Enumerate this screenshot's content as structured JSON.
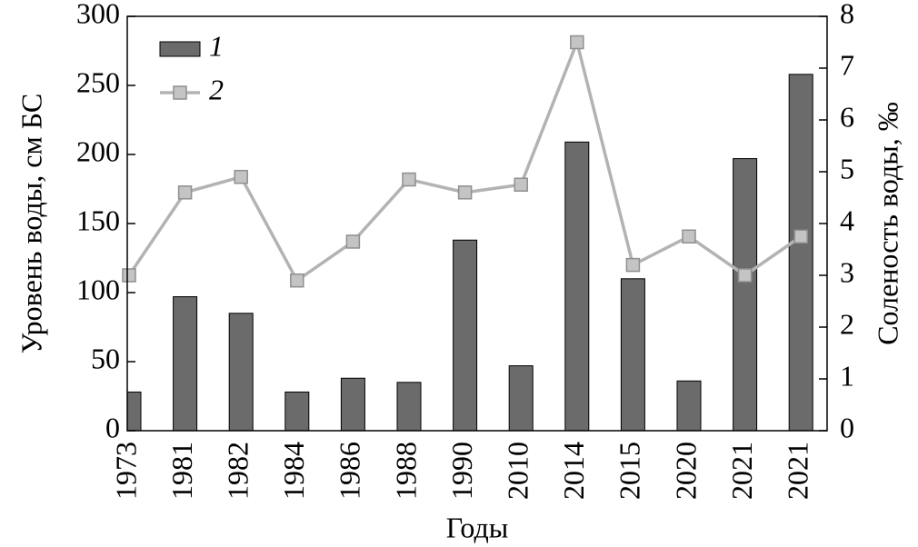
{
  "chart_data": {
    "type": "bar_line",
    "x_label": "Годы",
    "y_label": "Уровень воды, см БС",
    "y2_label": "Соленость воды, ‰",
    "categories": [
      "1973",
      "1981",
      "1982",
      "1984",
      "1986",
      "1988",
      "1990",
      "2010",
      "2014",
      "2015",
      "2020",
      "2021",
      "2021"
    ],
    "series": [
      {
        "name": "1",
        "type": "bar",
        "color": "#6b6b6b",
        "values": [
          28,
          97,
          85,
          28,
          38,
          35,
          138,
          47,
          209,
          110,
          36,
          197,
          258
        ]
      },
      {
        "name": "2",
        "type": "line",
        "axis": "y2",
        "color": "#b3b3b3",
        "values": [
          3.0,
          4.6,
          4.9,
          2.9,
          3.65,
          4.85,
          4.6,
          4.75,
          7.5,
          3.2,
          3.75,
          3.0,
          3.75
        ]
      }
    ],
    "ylim": [
      0,
      300
    ],
    "yticks": [
      0,
      50,
      100,
      150,
      200,
      250,
      300
    ],
    "y2lim": [
      0,
      8
    ],
    "y2ticks": [
      0,
      1,
      2,
      3,
      4,
      5,
      6,
      7,
      8
    ],
    "legend": "upper left"
  }
}
